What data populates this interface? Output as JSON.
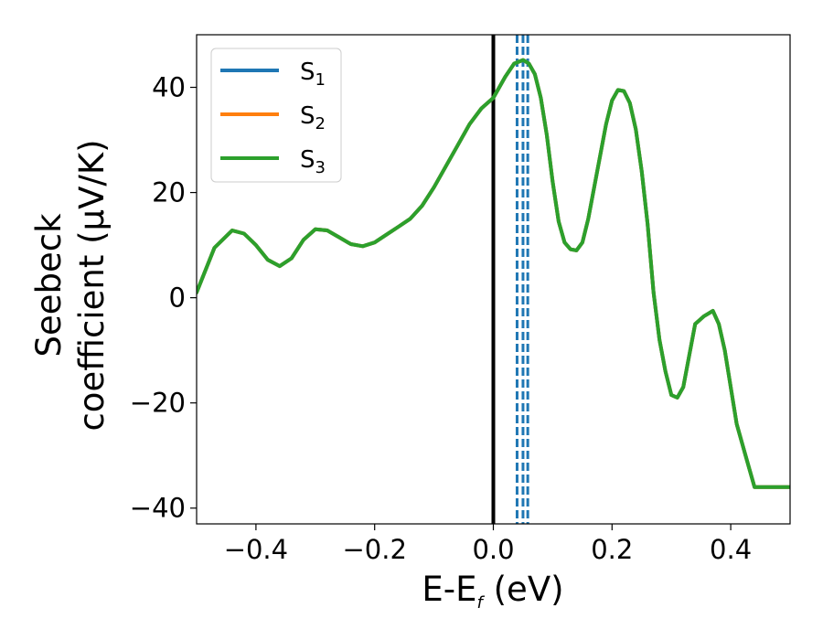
{
  "chart_data": {
    "type": "line",
    "xlabel": {
      "main": "E-E",
      "sub": "f",
      "suffix": " (eV)"
    },
    "ylabel": {
      "line1": "Seebeck",
      "line2": "coefficient  (μV/K)"
    },
    "xlim": [
      -0.5,
      0.5
    ],
    "ylim": [
      -43,
      50
    ],
    "xticks": [
      -0.4,
      -0.2,
      0.0,
      0.2,
      0.4
    ],
    "xtick_labels": [
      "−0.4",
      "−0.2",
      "0.0",
      "0.2",
      "0.4"
    ],
    "yticks": [
      -40,
      -20,
      0,
      20,
      40
    ],
    "ytick_labels": [
      "−40",
      "−20",
      "0",
      "20",
      "40"
    ],
    "grid": false,
    "legend_position": "top-left",
    "series": [
      {
        "name": "S",
        "sub": "1",
        "color": "#1f77b4",
        "x": [
          -0.5,
          -0.47,
          -0.44,
          -0.42,
          -0.4,
          -0.38,
          -0.36,
          -0.34,
          -0.32,
          -0.3,
          -0.28,
          -0.26,
          -0.24,
          -0.22,
          -0.2,
          -0.18,
          -0.16,
          -0.14,
          -0.12,
          -0.1,
          -0.08,
          -0.06,
          -0.04,
          -0.02,
          0.0,
          0.02,
          0.035,
          0.05,
          0.06,
          0.07,
          0.08,
          0.09,
          0.1,
          0.11,
          0.12,
          0.13,
          0.14,
          0.15,
          0.16,
          0.17,
          0.18,
          0.19,
          0.2,
          0.21,
          0.22,
          0.23,
          0.24,
          0.25,
          0.26,
          0.27,
          0.28,
          0.29,
          0.3,
          0.31,
          0.32,
          0.33,
          0.34,
          0.355,
          0.37,
          0.38,
          0.39,
          0.4,
          0.41,
          0.425,
          0.44,
          0.45,
          0.46,
          0.47,
          0.48,
          0.49,
          0.5
        ],
        "y": [
          1,
          9.5,
          12.8,
          12.2,
          10,
          7.2,
          6,
          7.5,
          11,
          13,
          12.8,
          11.5,
          10.2,
          9.8,
          10.5,
          12,
          13.5,
          15,
          17.5,
          21,
          25,
          29,
          33,
          36,
          38,
          42,
          44.5,
          45.2,
          44.5,
          42.5,
          38,
          31,
          22,
          14.5,
          10.5,
          9.2,
          9,
          10.5,
          15,
          21,
          27,
          33,
          37.5,
          39.5,
          39.3,
          37,
          32,
          24,
          14,
          1,
          -8,
          -14,
          -18.5,
          -19,
          -17,
          -11,
          -5,
          -3.5,
          -2.5,
          -5,
          -10,
          -17,
          -24,
          -30,
          -36,
          -36,
          -36,
          -36,
          -36,
          -36,
          -36
        ]
      },
      {
        "name": "S",
        "sub": "2",
        "color": "#ff7f0e",
        "x": [
          -0.5,
          -0.47,
          -0.44,
          -0.42,
          -0.4,
          -0.38,
          -0.36,
          -0.34,
          -0.32,
          -0.3,
          -0.28,
          -0.26,
          -0.24,
          -0.22,
          -0.2,
          -0.18,
          -0.16,
          -0.14,
          -0.12,
          -0.1,
          -0.08,
          -0.06,
          -0.04,
          -0.02,
          0.0,
          0.02,
          0.035,
          0.05,
          0.06,
          0.07,
          0.08,
          0.09,
          0.1,
          0.11,
          0.12,
          0.13,
          0.14,
          0.15,
          0.16,
          0.17,
          0.18,
          0.19,
          0.2,
          0.21,
          0.22,
          0.23,
          0.24,
          0.25,
          0.26,
          0.27,
          0.28,
          0.29,
          0.3,
          0.31,
          0.32,
          0.33,
          0.34,
          0.355,
          0.37,
          0.38,
          0.39,
          0.4,
          0.41,
          0.425,
          0.44,
          0.45,
          0.46,
          0.47,
          0.48,
          0.49,
          0.5
        ],
        "y": [
          1,
          9.5,
          12.8,
          12.2,
          10,
          7.2,
          6,
          7.5,
          11,
          13,
          12.8,
          11.5,
          10.2,
          9.8,
          10.5,
          12,
          13.5,
          15,
          17.5,
          21,
          25,
          29,
          33,
          36,
          38,
          42,
          44.5,
          45.2,
          44.5,
          42.5,
          38,
          31,
          22,
          14.5,
          10.5,
          9.2,
          9,
          10.5,
          15,
          21,
          27,
          33,
          37.5,
          39.5,
          39.3,
          37,
          32,
          24,
          14,
          1,
          -8,
          -14,
          -18.5,
          -19,
          -17,
          -11,
          -5,
          -3.5,
          -2.5,
          -5,
          -10,
          -17,
          -24,
          -30,
          -36,
          -36,
          -36,
          -36,
          -36,
          -36,
          -36
        ]
      },
      {
        "name": "S",
        "sub": "3",
        "color": "#2ca02c",
        "x": [
          -0.5,
          -0.47,
          -0.44,
          -0.42,
          -0.4,
          -0.38,
          -0.36,
          -0.34,
          -0.32,
          -0.3,
          -0.28,
          -0.26,
          -0.24,
          -0.22,
          -0.2,
          -0.18,
          -0.16,
          -0.14,
          -0.12,
          -0.1,
          -0.08,
          -0.06,
          -0.04,
          -0.02,
          0.0,
          0.02,
          0.035,
          0.05,
          0.06,
          0.07,
          0.08,
          0.09,
          0.1,
          0.11,
          0.12,
          0.13,
          0.14,
          0.15,
          0.16,
          0.17,
          0.18,
          0.19,
          0.2,
          0.21,
          0.22,
          0.23,
          0.24,
          0.25,
          0.26,
          0.27,
          0.28,
          0.29,
          0.3,
          0.31,
          0.32,
          0.33,
          0.34,
          0.355,
          0.37,
          0.38,
          0.39,
          0.4,
          0.41,
          0.425,
          0.44,
          0.45,
          0.46,
          0.47,
          0.48,
          0.49,
          0.5
        ],
        "y": [
          1,
          9.5,
          12.8,
          12.2,
          10,
          7.2,
          6,
          7.5,
          11,
          13,
          12.8,
          11.5,
          10.2,
          9.8,
          10.5,
          12,
          13.5,
          15,
          17.5,
          21,
          25,
          29,
          33,
          36,
          38,
          42,
          44.5,
          45.2,
          44.5,
          42.5,
          38,
          31,
          22,
          14.5,
          10.5,
          9.2,
          9,
          10.5,
          15,
          21,
          27,
          33,
          37.5,
          39.5,
          39.3,
          37,
          32,
          24,
          14,
          1,
          -8,
          -14,
          -18.5,
          -19,
          -17,
          -11,
          -5,
          -3.5,
          -2.5,
          -5,
          -10,
          -17,
          -24,
          -30,
          -36,
          -36,
          -36,
          -36,
          -36,
          -36,
          -36
        ]
      }
    ],
    "vertical_lines": [
      {
        "x": 0.0,
        "color": "#000000",
        "style": "solid"
      },
      {
        "x": 0.04,
        "color": "#1f77b4",
        "style": "dashed"
      },
      {
        "x": 0.05,
        "color": "#1f77b4",
        "style": "dashed"
      },
      {
        "x": 0.058,
        "color": "#1f77b4",
        "style": "dashed"
      }
    ]
  }
}
